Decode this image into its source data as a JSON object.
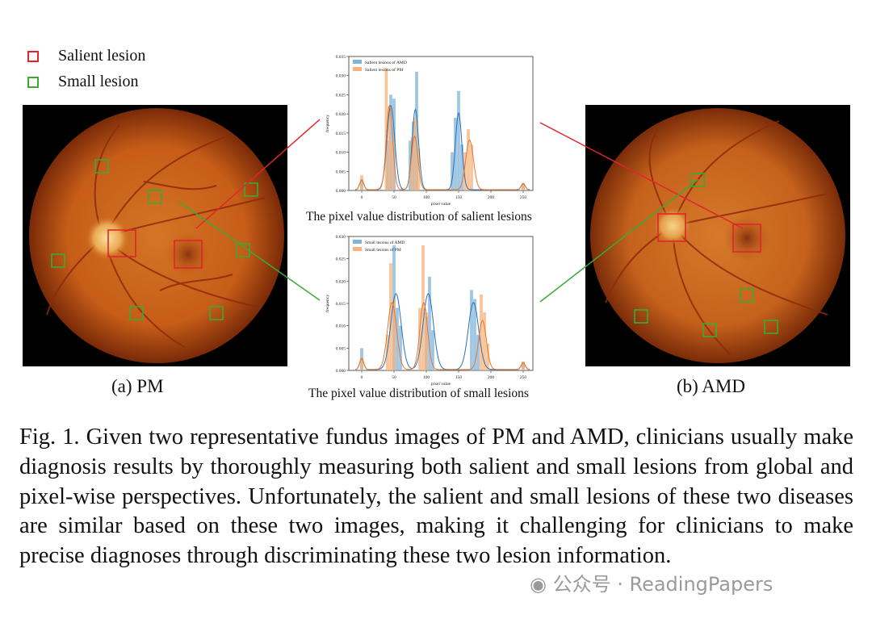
{
  "legend": {
    "salient_label": "Salient lesion",
    "small_label": "Small lesion",
    "salient_color": "#e0262b",
    "small_color": "#3aaa35"
  },
  "images": {
    "left_label": "(a) PM",
    "right_label": "(b) AMD"
  },
  "chart_data": [
    {
      "type": "bar",
      "subtitle": "The pixel value distribution of salient lesions",
      "xlabel": "pixel value",
      "ylabel": "frequency",
      "xlim": [
        -20,
        265
      ],
      "ylim": [
        0,
        0.035
      ],
      "xticks": [
        0,
        50,
        100,
        150,
        200,
        250
      ],
      "yticks": [
        "0.000",
        "0.005",
        "0.010",
        "0.015",
        "0.020",
        "0.025",
        "0.030",
        "0.035"
      ],
      "series": [
        {
          "name": "Salient lesions of AMD",
          "color": "#7fb3d9",
          "line_color": "#2b6fb5",
          "bars": [
            [
              0,
              0.003
            ],
            [
              40,
              0.013
            ],
            [
              45,
              0.025
            ],
            [
              50,
              0.024
            ],
            [
              75,
              0.013
            ],
            [
              80,
              0.018
            ],
            [
              85,
              0.031
            ],
            [
              140,
              0.01
            ],
            [
              145,
              0.019
            ],
            [
              150,
              0.026
            ],
            [
              155,
              0.012
            ],
            [
              250,
              0.002
            ]
          ],
          "peaks": [
            [
              45,
              0.022,
              6
            ],
            [
              83,
              0.021,
              5
            ],
            [
              150,
              0.02,
              5
            ]
          ]
        },
        {
          "name": "Salient lesions of PM",
          "color": "#f5b27a",
          "line_color": "#e8772e",
          "bars": [
            [
              0,
              0.004
            ],
            [
              38,
              0.032
            ],
            [
              43,
              0.022
            ],
            [
              48,
              0.013
            ],
            [
              78,
              0.014
            ],
            [
              83,
              0.019
            ],
            [
              88,
              0.011
            ],
            [
              160,
              0.01
            ],
            [
              165,
              0.016
            ],
            [
              170,
              0.012
            ],
            [
              250,
              0.002
            ]
          ],
          "peaks": [
            [
              43,
              0.022,
              5
            ],
            [
              82,
              0.014,
              5
            ],
            [
              167,
              0.013,
              6
            ]
          ]
        }
      ]
    },
    {
      "type": "bar",
      "subtitle": "The pixel value distribution of small lesions",
      "xlabel": "pixel value",
      "ylabel": "frequency",
      "xlim": [
        -20,
        265
      ],
      "ylim": [
        0,
        0.03
      ],
      "xticks": [
        0,
        50,
        100,
        150,
        200,
        250
      ],
      "yticks": [
        "0.000",
        "0.005",
        "0.010",
        "0.015",
        "0.020",
        "0.025",
        "0.030"
      ],
      "series": [
        {
          "name": "Small lesions of AMD",
          "color": "#7fb3d9",
          "line_color": "#2b6fb5",
          "bars": [
            [
              0,
              0.005
            ],
            [
              50,
              0.028
            ],
            [
              55,
              0.014
            ],
            [
              60,
              0.01
            ],
            [
              100,
              0.012
            ],
            [
              105,
              0.021
            ],
            [
              110,
              0.009
            ],
            [
              170,
              0.018
            ],
            [
              175,
              0.016
            ],
            [
              180,
              0.008
            ],
            [
              250,
              0.002
            ]
          ],
          "peaks": [
            [
              53,
              0.017,
              8
            ],
            [
              103,
              0.017,
              8
            ],
            [
              173,
              0.015,
              8
            ]
          ]
        },
        {
          "name": "Small lesions of PM",
          "color": "#f5b27a",
          "line_color": "#e8772e",
          "bars": [
            [
              0,
              0.003
            ],
            [
              40,
              0.008
            ],
            [
              45,
              0.024
            ],
            [
              50,
              0.016
            ],
            [
              90,
              0.014
            ],
            [
              95,
              0.028
            ],
            [
              100,
              0.013
            ],
            [
              185,
              0.017
            ],
            [
              190,
              0.013
            ],
            [
              195,
              0.006
            ],
            [
              250,
              0.002
            ]
          ],
          "peaks": [
            [
              47,
              0.015,
              7
            ],
            [
              96,
              0.015,
              6
            ],
            [
              187,
              0.011,
              6
            ]
          ]
        }
      ]
    }
  ],
  "caption": {
    "text": "Fig. 1.  Given two representative fundus images of PM and AMD, clinicians usually make diagnosis results by thoroughly measuring both salient and small lesions from global and pixel-wise perspectives. Unfortunately, the salient and small lesions of these two diseases are similar based on these two images, making it challenging for clinicians to make precise diagnoses through discriminating these two lesion information."
  },
  "watermark": "公众号 · ReadingPapers"
}
